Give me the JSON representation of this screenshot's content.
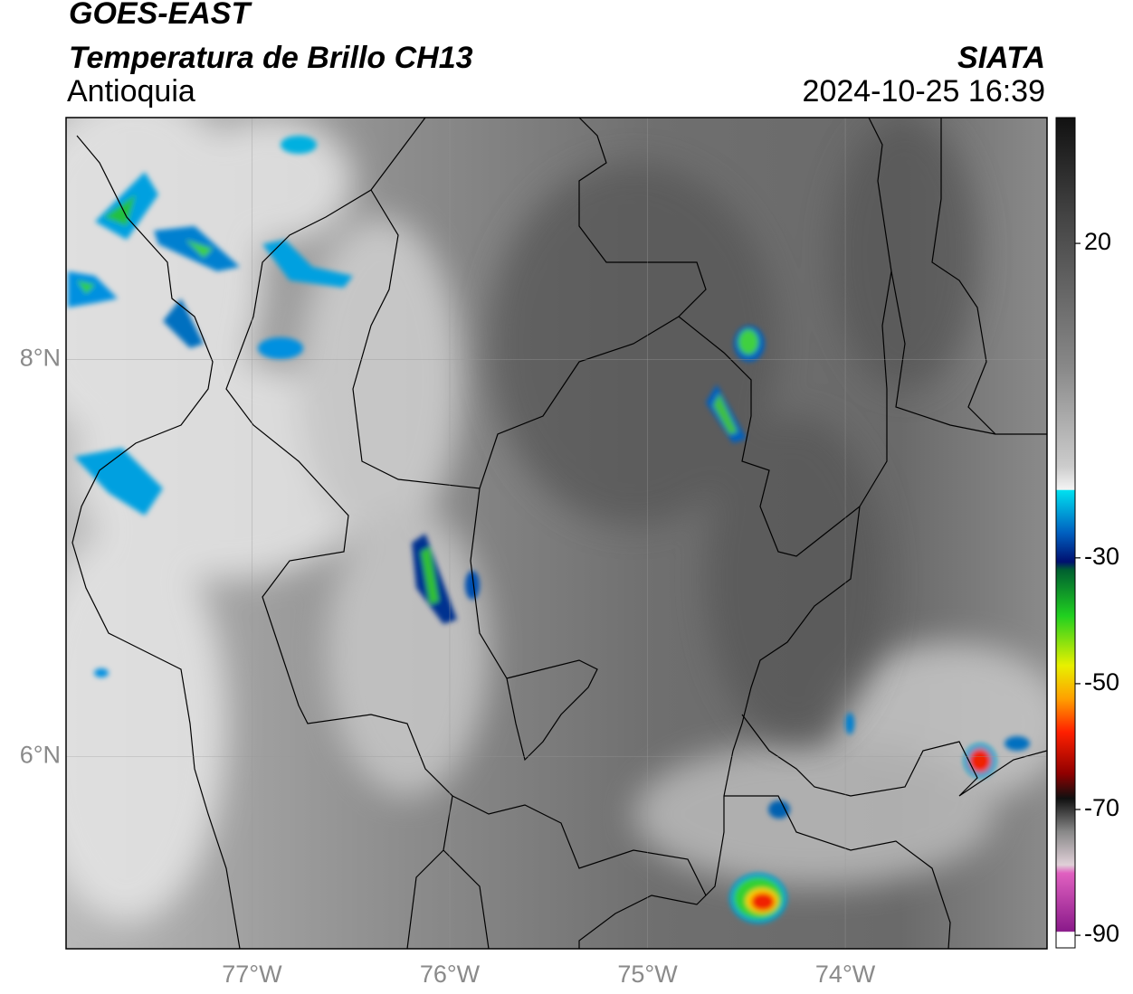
{
  "header": {
    "title": "GOES-EAST",
    "subtitle": "Temperatura de Brillo CH13",
    "region": "Antioquia",
    "source": "SIATA",
    "datetime": "2024-10-25 16:39"
  },
  "map": {
    "xlim": [
      -77.94,
      -72.98
    ],
    "ylim": [
      5.03,
      9.22
    ],
    "lat_ticks": [
      {
        "value": 8,
        "label": "8°N"
      },
      {
        "value": 6,
        "label": "6°N"
      }
    ],
    "lon_ticks": [
      {
        "value": -77,
        "label": "77°W"
      },
      {
        "value": -76,
        "label": "76°W"
      },
      {
        "value": -75,
        "label": "75°W"
      },
      {
        "value": -74,
        "label": "74°W"
      }
    ]
  },
  "colorbar": {
    "range": [
      -92,
      40
    ],
    "ticks": [
      20,
      -30,
      -50,
      -70,
      -90
    ]
  }
}
